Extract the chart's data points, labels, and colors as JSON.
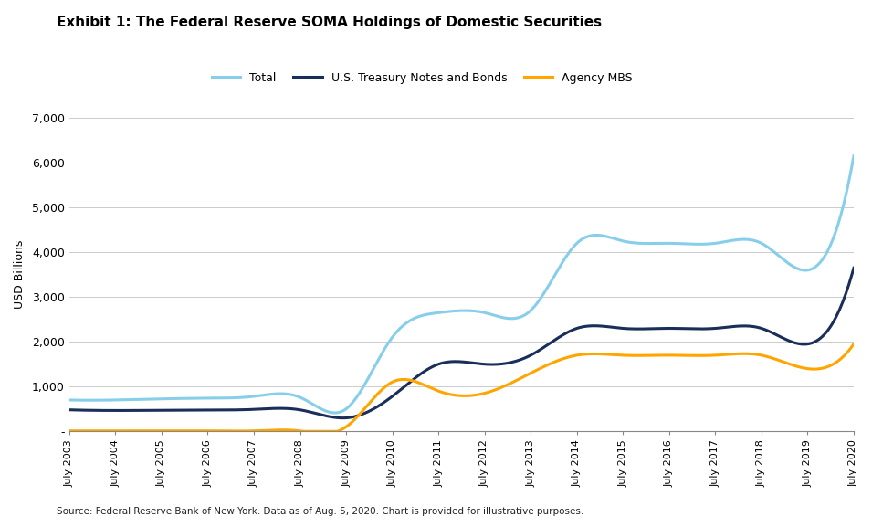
{
  "title": "Exhibit 1: The Federal Reserve SOMA Holdings of Domestic Securities",
  "ylabel": "USD Billions",
  "source_text": "Source: Federal Reserve Bank of New York. Data as of Aug. 5, 2020. Chart is provided for illustrative purposes.",
  "ylim": [
    0,
    7000
  ],
  "yticks": [
    0,
    1000,
    2000,
    3000,
    4000,
    5000,
    6000,
    7000
  ],
  "ytick_labels": [
    "-",
    "1,000",
    "2,000",
    "3,000",
    "4,000",
    "5,000",
    "6,000",
    "7,000"
  ],
  "colors": {
    "total": "#87CEEB",
    "treasury": "#1a2e5a",
    "mbs": "#FFA500"
  },
  "legend": [
    "Total",
    "U.S. Treasury Notes and Bonds",
    "Agency MBS"
  ],
  "background_color": "#ffffff",
  "x_labels": [
    "July 2003",
    "July 2004",
    "July 2005",
    "July 2006",
    "July 2007",
    "July 2008",
    "July 2009",
    "July 2010",
    "July 2011",
    "July 2012",
    "July 2013",
    "July 2014",
    "July 2015",
    "July 2016",
    "July 2017",
    "July 2018",
    "July 2019",
    "July 2020"
  ],
  "total": [
    700,
    700,
    725,
    740,
    780,
    760,
    500,
    2100,
    2650,
    2650,
    2700,
    4200,
    4250,
    4200,
    4200,
    4200,
    3600,
    6150
  ],
  "treasury": [
    480,
    465,
    470,
    475,
    490,
    480,
    300,
    780,
    1500,
    1500,
    1700,
    2300,
    2300,
    2300,
    2300,
    2300,
    1950,
    3650
  ],
  "mbs": [
    10,
    10,
    10,
    10,
    10,
    10,
    100,
    1100,
    900,
    850,
    1300,
    1700,
    1700,
    1700,
    1700,
    1700,
    1400,
    1950
  ]
}
